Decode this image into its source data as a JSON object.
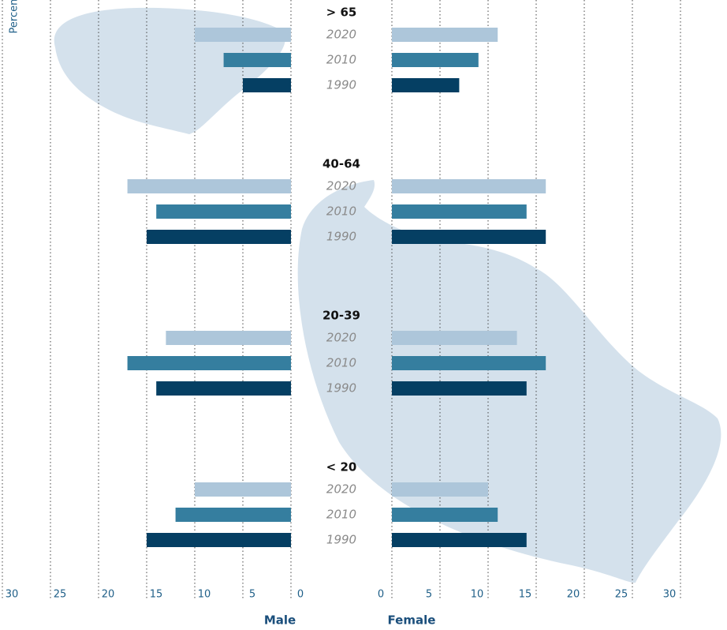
{
  "chart_data": {
    "type": "bar",
    "orientation": "horizontal",
    "y_label": "Percent",
    "male_label": "Male",
    "female_label": "Female",
    "categories": [
      "> 65",
      "40-64",
      "20-39",
      "< 20"
    ],
    "series": [
      {
        "name": "2020",
        "color": "#adc6da",
        "male": [
          10,
          17,
          13,
          10
        ],
        "female": [
          11,
          16,
          13,
          10
        ]
      },
      {
        "name": "2010",
        "color": "#357e9f",
        "male": [
          7,
          14,
          17,
          12
        ],
        "female": [
          9,
          14,
          16,
          11
        ]
      },
      {
        "name": "1990",
        "color": "#053f63",
        "male": [
          5,
          15,
          14,
          15
        ],
        "female": [
          7,
          16,
          14,
          14
        ]
      }
    ],
    "xlim": [
      0,
      30
    ],
    "xticks": [
      0,
      5,
      10,
      15,
      20,
      25,
      30
    ],
    "grid": true
  }
}
